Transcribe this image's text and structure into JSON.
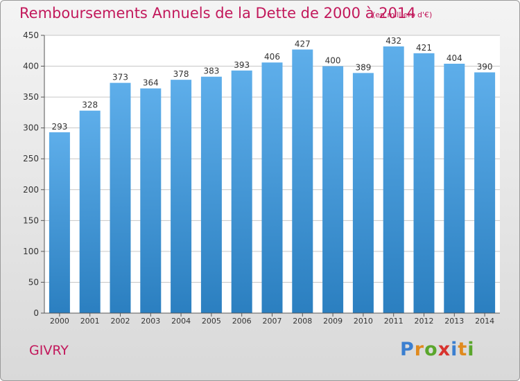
{
  "title": "Remboursements Annuels de la Dette de 2000 à 2014",
  "subtitle": "(en milliers d'€)",
  "place": "GIVRY",
  "logo": {
    "letters": [
      "P",
      "r",
      "o",
      "x",
      "i",
      "t",
      "i"
    ],
    "colors": [
      "#3b7fd0",
      "#e08a1e",
      "#5aa62c",
      "#d8332e",
      "#3b7fd0",
      "#e08a1e",
      "#5aa62c"
    ]
  },
  "colors": {
    "bar_top": "#5eaeea",
    "bar_bottom": "#2b7fc0",
    "grid": "#c6c6c6",
    "axis": "#555555",
    "label": "#333333"
  },
  "chart_data": {
    "type": "bar",
    "categories": [
      "2000",
      "2001",
      "2002",
      "2003",
      "2004",
      "2005",
      "2006",
      "2007",
      "2008",
      "2009",
      "2010",
      "2011",
      "2012",
      "2013",
      "2014"
    ],
    "values": [
      293,
      328,
      373,
      364,
      378,
      383,
      393,
      406,
      427,
      400,
      389,
      432,
      421,
      404,
      390
    ],
    "ylim": [
      0,
      450
    ],
    "yticks": [
      0,
      50,
      100,
      150,
      200,
      250,
      300,
      350,
      400,
      450
    ],
    "grid": true,
    "legend": "none"
  }
}
